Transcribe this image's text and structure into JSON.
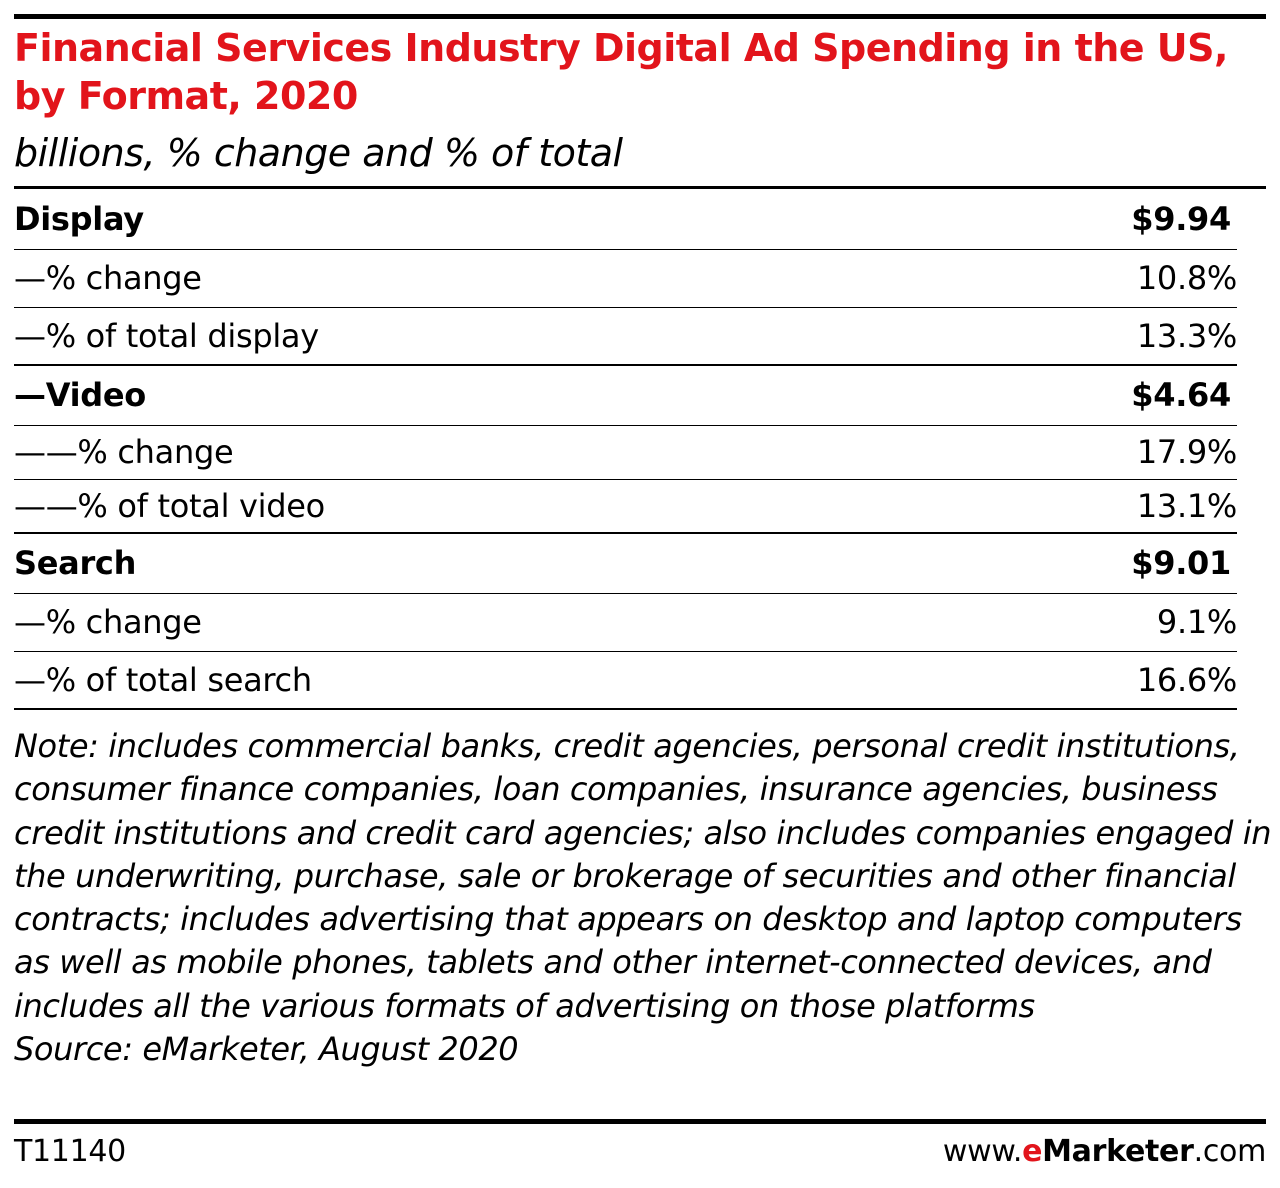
{
  "chart_data": {
    "type": "table",
    "title": "Financial Services Industry Digital Ad Spending in the US, by Format, 2020",
    "subtitle": "billions, % change and % of total",
    "rows": [
      {
        "label": "Display",
        "value": "$9.94",
        "kind": "head"
      },
      {
        "label": "—% change",
        "value": "10.8%",
        "kind": "sub"
      },
      {
        "label": "—% of total display",
        "value": "13.3%",
        "kind": "sub"
      },
      {
        "label": "—Video",
        "value": "$4.64",
        "kind": "head"
      },
      {
        "label": "——% change",
        "value": "17.9%",
        "kind": "sub"
      },
      {
        "label": "——% of total video",
        "value": "13.1%",
        "kind": "sub"
      },
      {
        "label": "Search",
        "value": "$9.01",
        "kind": "head"
      },
      {
        "label": "—% change",
        "value": "9.1%",
        "kind": "sub"
      },
      {
        "label": "—% of total search",
        "value": "16.6%",
        "kind": "sub"
      }
    ],
    "note": "Note: includes commercial banks, credit agencies, personal credit institutions, consumer finance companies, loan companies, insurance agencies, business credit institutions and credit card agencies; also includes companies engaged in the underwriting, purchase, sale or brokerage of securities and other financial contracts; includes advertising that appears on desktop and laptop computers as well as mobile phones, tablets and other internet-connected devices, and includes all the various formats of advertising on those platforms",
    "source": "Source: eMarketer, August 2020"
  },
  "footer": {
    "table_id": "T11140",
    "brand_prefix": "www.",
    "brand_e": "e",
    "brand_name": "Marketer",
    "brand_suffix": ".com"
  },
  "colors": {
    "title": "#e2141b",
    "brand_accent": "#e2141b"
  }
}
